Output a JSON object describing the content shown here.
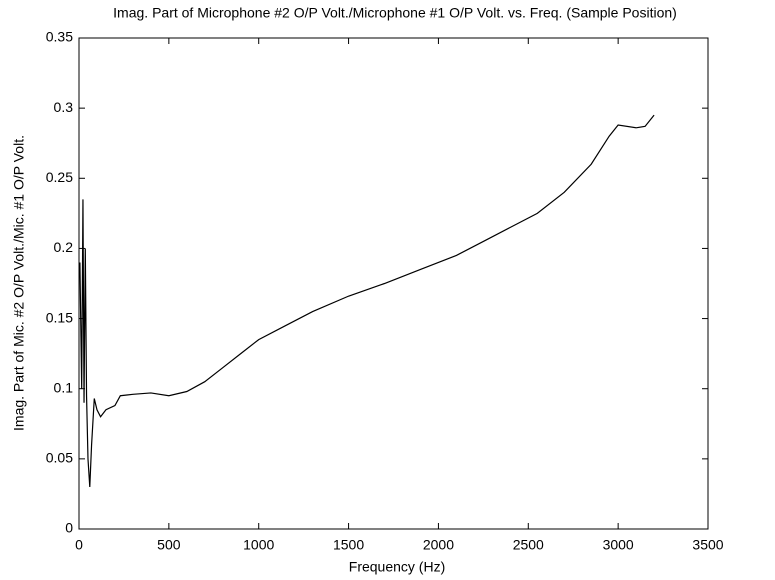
{
  "chart_data": {
    "type": "line",
    "title": "Imag. Part of Microphone #2 O/P Volt./Microphone #1 O/P Volt. vs. Freq. (Sample Position)",
    "xlabel": "Frequency (Hz)",
    "ylabel": "Imag. Part of Mic. #2 O/P Volt./Mic. #1 O/P Volt.",
    "x": [
      5,
      15,
      22,
      28,
      35,
      42,
      50,
      60,
      70,
      85,
      100,
      120,
      150,
      200,
      230,
      300,
      400,
      500,
      600,
      700,
      800,
      900,
      1000,
      1150,
      1300,
      1500,
      1700,
      1900,
      2100,
      2250,
      2400,
      2550,
      2700,
      2850,
      2950,
      3000,
      3100,
      3150,
      3200
    ],
    "values": [
      0.19,
      0.1,
      0.235,
      0.09,
      0.2,
      0.095,
      0.05,
      0.03,
      0.06,
      0.093,
      0.085,
      0.08,
      0.085,
      0.088,
      0.095,
      0.096,
      0.097,
      0.095,
      0.098,
      0.105,
      0.115,
      0.125,
      0.135,
      0.145,
      0.155,
      0.166,
      0.175,
      0.185,
      0.195,
      0.205,
      0.215,
      0.225,
      0.24,
      0.26,
      0.28,
      0.288,
      0.286,
      0.287,
      0.295
    ],
    "color": "#000000",
    "xlim": [
      0,
      3500
    ],
    "xticks": [
      0,
      500,
      1000,
      1500,
      2000,
      2500,
      3000,
      3500
    ],
    "ylim": [
      0,
      0.35
    ],
    "yticks": [
      0,
      0.05,
      0.1,
      0.15,
      0.2,
      0.25,
      0.3,
      0.35
    ]
  }
}
